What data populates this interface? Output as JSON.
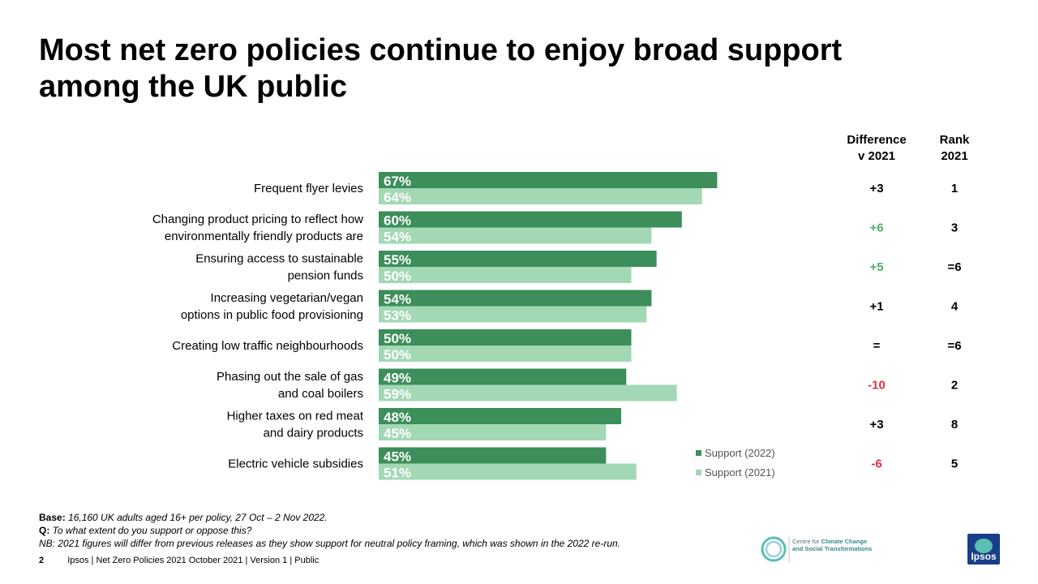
{
  "header": {
    "title_line1": "Most net zero policies continue to enjoy broad support",
    "title_line2": "among the UK public"
  },
  "columns": {
    "difference_line1": "Difference",
    "difference_line2": "v 2021",
    "rank_line1": "Rank",
    "rank_line2": "2021"
  },
  "chart_data": {
    "type": "bar",
    "orientation": "horizontal",
    "categories": [
      [
        "Frequent flyer levies"
      ],
      [
        "Changing product pricing to reflect how",
        "environmentally  friendly products are"
      ],
      [
        "Ensuring access to sustainable",
        "pension funds"
      ],
      [
        "Increasing vegetarian/vegan",
        "options in public food provisioning"
      ],
      [
        "Creating low traffic neighbourhoods"
      ],
      [
        "Phasing out the sale of gas",
        "and coal boilers"
      ],
      [
        "Higher taxes on red meat",
        "and dairy products"
      ],
      [
        "Electric vehicle subsidies"
      ]
    ],
    "series": [
      {
        "name": "Support (2022)",
        "values": [
          67,
          60,
          55,
          54,
          50,
          49,
          48,
          45
        ],
        "labels": [
          "67%",
          "60%",
          "55%",
          "54%",
          "50%",
          "49%",
          "48%",
          "45%"
        ],
        "color": "#3c8e5a"
      },
      {
        "name": "Support (2021)",
        "values": [
          64,
          54,
          50,
          53,
          50,
          59,
          45,
          51
        ],
        "labels": [
          "64%",
          "54%",
          "50%",
          "53%",
          "50%",
          "59%",
          "45%",
          "51%"
        ],
        "color": "#a3d8b5"
      }
    ],
    "difference": [
      "+3",
      "+6",
      "+5",
      "+1",
      "=",
      "-10",
      "+3",
      "-6"
    ],
    "difference_colors": [
      "#000000",
      "#4caf6e",
      "#4caf6e",
      "#000000",
      "#000000",
      "#e0304a",
      "#000000",
      "#e0304a"
    ],
    "rank": [
      "1",
      "3",
      "=6",
      "4",
      "=6",
      "2",
      "8",
      "5"
    ],
    "xlim": [
      0,
      100
    ],
    "legend_position": "bottom-right of bars"
  },
  "notes": {
    "base_label": "Base:",
    "base_text": " 16,160 UK adults aged 16+ per policy, 27 Oct – 2 Nov 2022.",
    "q_label": "Q:",
    "q_text": " To what extent do you support or oppose this?",
    "nb_text": "NB: 2021 figures will differ from previous releases as they show support for neutral policy framing, which was shown in the 2022 re-run."
  },
  "footer": {
    "page_number": "2",
    "text": "Ipsos | Net Zero Policies 2021  October 2021 | Version 1 | Public"
  },
  "logos": {
    "cct_line1_pre": "Centre for ",
    "cct_line1_bold": "Climate Change",
    "cct_line2": "and Social Transformations",
    "ipsos": "Ipsos"
  }
}
